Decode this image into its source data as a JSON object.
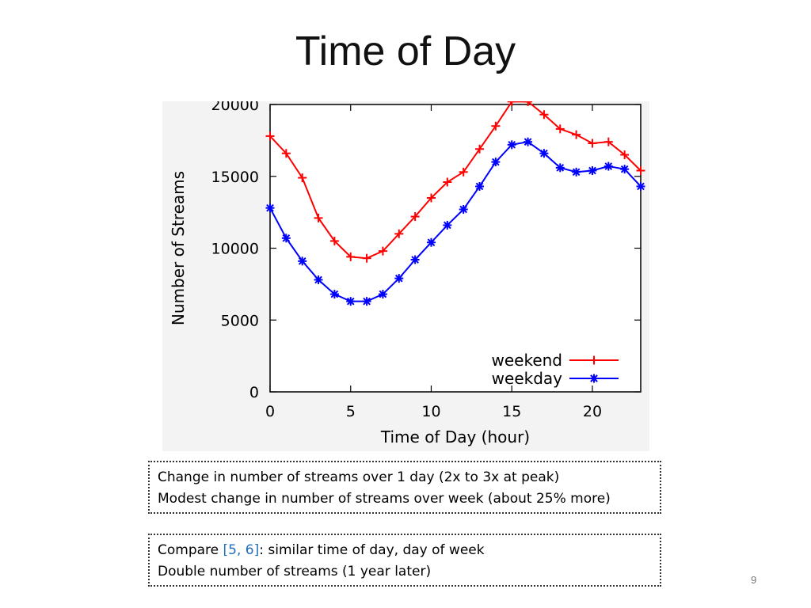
{
  "slide": {
    "title": "Time of Day",
    "page_number": "9"
  },
  "notes": {
    "box1": {
      "line1": "Change in number of streams over 1 day (2x to 3x at peak)",
      "line2": "Modest change in number of streams over week (about 25% more)"
    },
    "box2": {
      "compare_prefix": "Compare ",
      "citation": "[5, 6]",
      "compare_suffix": ": similar time of day, day of week",
      "line2": "Double number of streams (1 year later)"
    },
    "link_color": "#1f6fbf"
  },
  "chart_data": {
    "type": "line",
    "xlabel": "Time of Day (hour)",
    "ylabel": "Number of Streams",
    "xlim": [
      0,
      23
    ],
    "ylim": [
      0,
      20000
    ],
    "x_ticks": [
      0,
      5,
      10,
      15,
      20
    ],
    "y_ticks": [
      0,
      5000,
      10000,
      15000,
      20000
    ],
    "grid": false,
    "legend_position": "bottom-right",
    "x": [
      0,
      1,
      2,
      3,
      4,
      5,
      6,
      7,
      8,
      9,
      10,
      11,
      12,
      13,
      14,
      15,
      16,
      17,
      18,
      19,
      20,
      21,
      22,
      23
    ],
    "series": [
      {
        "name": "weekend",
        "color": "#ff0000",
        "marker": "plus",
        "values": [
          17800,
          16600,
          14900,
          12100,
          10500,
          9400,
          9300,
          9800,
          11000,
          12200,
          13500,
          14600,
          15300,
          16900,
          18500,
          20200,
          20200,
          19300,
          18300,
          17900,
          17300,
          17400,
          16500,
          15400
        ]
      },
      {
        "name": "weekday",
        "color": "#0000ff",
        "marker": "star",
        "values": [
          12800,
          10700,
          9100,
          7800,
          6800,
          6300,
          6300,
          6800,
          7900,
          9200,
          10400,
          11600,
          12700,
          14300,
          16000,
          17200,
          17400,
          16600,
          15600,
          15300,
          15400,
          15700,
          15500,
          14300
        ]
      }
    ]
  }
}
